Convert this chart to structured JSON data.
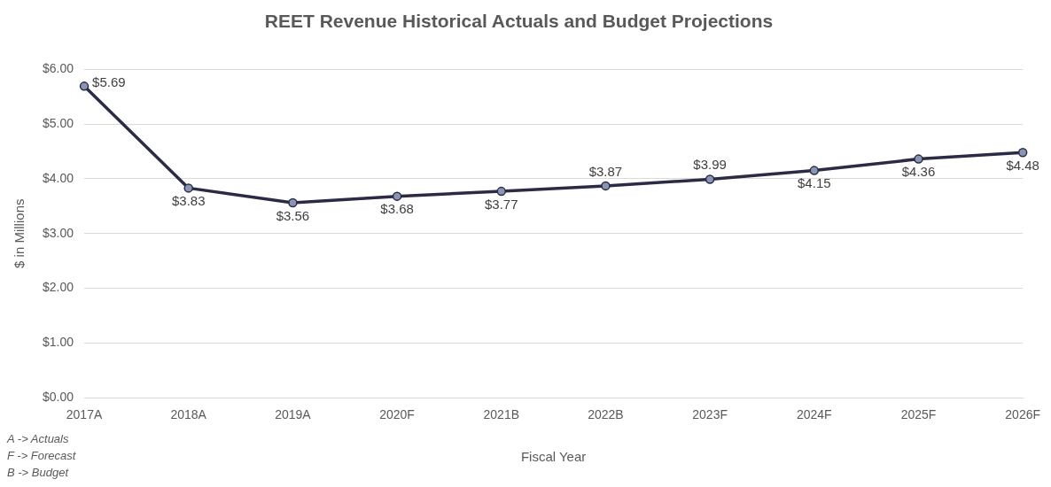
{
  "chart_data": {
    "type": "line",
    "title": "REET Revenue Historical Actuals and Budget Projections",
    "xlabel": "Fiscal Year",
    "ylabel": "$ in Millions",
    "categories": [
      "2017A",
      "2018A",
      "2019A",
      "2020F",
      "2021B",
      "2022B",
      "2023F",
      "2024F",
      "2025F",
      "2026F"
    ],
    "series": [
      {
        "color": "#2b2b45",
        "values": [
          5.69,
          3.83,
          3.56,
          3.68,
          3.77,
          3.87,
          3.99,
          4.15,
          4.36,
          4.48
        ],
        "value_labels": [
          "$5.69",
          "$3.83",
          "$3.56",
          "$3.68",
          "$3.77",
          "$3.87",
          "$3.99",
          "$4.15",
          "$4.36",
          "$4.48"
        ]
      }
    ],
    "ylim": [
      0,
      6
    ],
    "yticks": [
      {
        "value": 0,
        "label": "$0.00"
      },
      {
        "value": 1,
        "label": "$1.00"
      },
      {
        "value": 2,
        "label": "$2.00"
      },
      {
        "value": 3,
        "label": "$3.00"
      },
      {
        "value": 4,
        "label": "$4.00"
      },
      {
        "value": 5,
        "label": "$5.00"
      },
      {
        "value": 6,
        "label": "$6.00"
      }
    ],
    "grid": "y",
    "legend": false,
    "marker": "circle",
    "line_style": "solid",
    "annotations": [
      "A -> Actuals",
      "F -> Forecast",
      "B -> Budget"
    ]
  }
}
